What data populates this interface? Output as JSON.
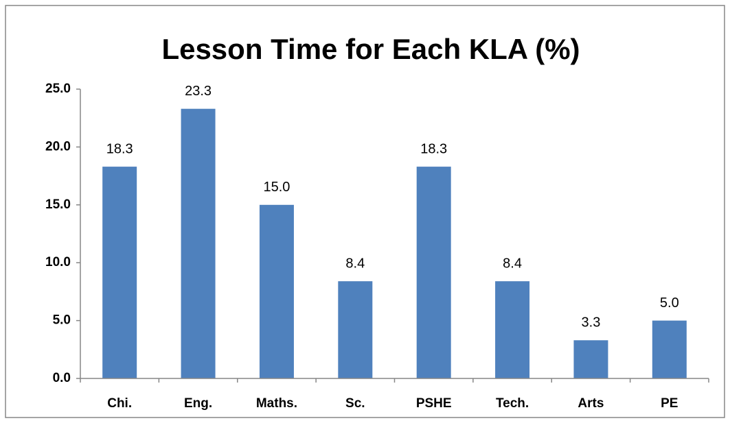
{
  "chart_data": {
    "type": "bar",
    "title": "Lesson Time for Each KLA (%)",
    "categories": [
      "Chi.",
      "Eng.",
      "Maths.",
      "Sc.",
      "PSHE",
      "Tech.",
      "Arts",
      "PE"
    ],
    "values": [
      18.3,
      23.3,
      15.0,
      8.4,
      18.3,
      8.4,
      3.3,
      5.0
    ],
    "value_labels": [
      "18.3",
      "23.3",
      "15.0",
      "8.4",
      "18.3",
      "8.4",
      "3.3",
      "5.0"
    ],
    "color": "#4f81bd",
    "ylim": [
      0,
      25
    ],
    "yticks": [
      {
        "value": 0,
        "label": "0.0"
      },
      {
        "value": 5,
        "label": "5.0"
      },
      {
        "value": 10,
        "label": "10.0"
      },
      {
        "value": 15,
        "label": "15.0"
      },
      {
        "value": 20,
        "label": "20.0"
      },
      {
        "value": 25,
        "label": "25.0"
      }
    ],
    "grid": false
  }
}
